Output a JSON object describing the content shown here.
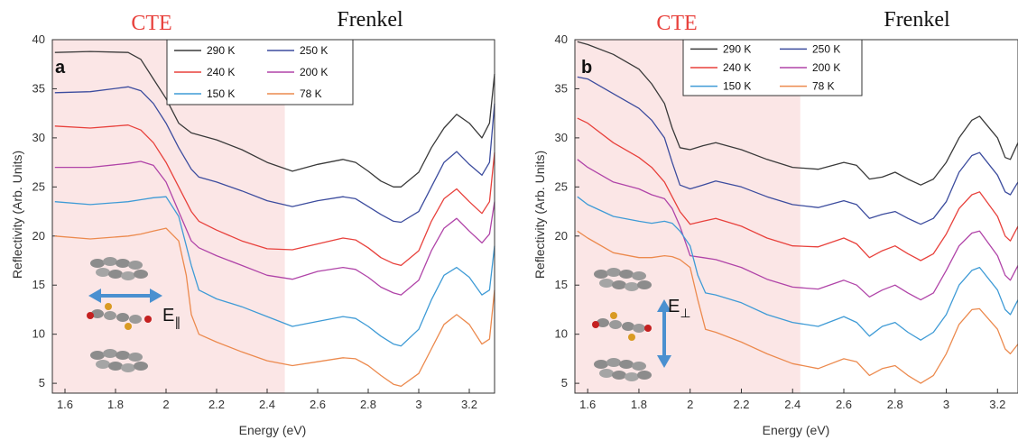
{
  "chart_data": [
    {
      "type": "line",
      "panel_label": "a",
      "regions": [
        {
          "text": "CTE",
          "color": "#e8413c",
          "x_from": 1.55,
          "x_to": 2.47,
          "fill": "#fbe6e6"
        },
        {
          "text": "Frenkel",
          "color": "#111111"
        }
      ],
      "xlabel": "Energy (eV)",
      "ylabel": "Reflectivity (Arb. Units)",
      "xlim": [
        1.55,
        3.3
      ],
      "ylim": [
        4,
        40
      ],
      "xticks": [
        1.6,
        1.8,
        2,
        2.2,
        2.4,
        2.6,
        2.8,
        3,
        3.2
      ],
      "xtick_labels": [
        "1.6",
        "1.8",
        "2",
        "2.2",
        "2.4",
        "2.6",
        "2.8",
        "3",
        "3.2"
      ],
      "yticks": [
        5,
        10,
        15,
        20,
        25,
        30,
        35,
        40
      ],
      "ytick_labels": [
        "5",
        "10",
        "15",
        "20",
        "25",
        "30",
        "35",
        "40"
      ],
      "polarization_label": "E",
      "polarization_sub": "∥",
      "legend_position": "top-center",
      "series": [
        {
          "name": "290 K",
          "color": "#3a3a3a",
          "x": [
            1.56,
            1.7,
            1.85,
            1.9,
            1.95,
            2.0,
            2.05,
            2.1,
            2.2,
            2.3,
            2.4,
            2.5,
            2.6,
            2.7,
            2.75,
            2.8,
            2.85,
            2.9,
            2.93,
            3.0,
            3.05,
            3.1,
            3.15,
            3.2,
            3.25,
            3.28,
            3.3
          ],
          "y": [
            38.7,
            38.8,
            38.7,
            38.0,
            36.0,
            34.0,
            31.5,
            30.5,
            29.8,
            28.8,
            27.5,
            26.6,
            27.3,
            27.8,
            27.5,
            26.6,
            25.6,
            25.0,
            25.0,
            26.5,
            29.0,
            31.0,
            32.4,
            31.5,
            30.0,
            31.5,
            36.5
          ]
        },
        {
          "name": "250 K",
          "color": "#3c4c9e",
          "x": [
            1.56,
            1.7,
            1.85,
            1.9,
            1.95,
            2.0,
            2.05,
            2.1,
            2.13,
            2.2,
            2.3,
            2.4,
            2.5,
            2.6,
            2.7,
            2.75,
            2.8,
            2.85,
            2.9,
            2.93,
            3.0,
            3.05,
            3.1,
            3.15,
            3.2,
            3.25,
            3.28,
            3.3
          ],
          "y": [
            34.6,
            34.7,
            35.2,
            34.8,
            33.5,
            31.5,
            29.0,
            26.8,
            26.0,
            25.5,
            24.6,
            23.6,
            23.0,
            23.6,
            24.0,
            23.8,
            23.0,
            22.2,
            21.5,
            21.4,
            22.5,
            25.0,
            27.5,
            28.6,
            27.3,
            26.2,
            27.5,
            33.5
          ]
        },
        {
          "name": "240 K",
          "color": "#e8413c",
          "x": [
            1.56,
            1.7,
            1.85,
            1.9,
            1.95,
            2.0,
            2.05,
            2.1,
            2.13,
            2.2,
            2.3,
            2.4,
            2.5,
            2.6,
            2.7,
            2.75,
            2.8,
            2.85,
            2.9,
            2.93,
            3.0,
            3.05,
            3.1,
            3.15,
            3.2,
            3.25,
            3.28,
            3.3
          ],
          "y": [
            31.2,
            31.0,
            31.3,
            30.8,
            29.5,
            27.5,
            25.0,
            22.5,
            21.5,
            20.6,
            19.5,
            18.7,
            18.6,
            19.2,
            19.8,
            19.6,
            18.8,
            17.8,
            17.2,
            17.0,
            18.5,
            21.5,
            23.8,
            24.8,
            23.5,
            22.3,
            23.5,
            28.5
          ]
        },
        {
          "name": "200 K",
          "color": "#b044a8",
          "x": [
            1.56,
            1.7,
            1.85,
            1.9,
            1.95,
            2.0,
            2.05,
            2.1,
            2.13,
            2.2,
            2.3,
            2.4,
            2.5,
            2.6,
            2.7,
            2.75,
            2.8,
            2.85,
            2.9,
            2.93,
            3.0,
            3.05,
            3.1,
            3.15,
            3.2,
            3.25,
            3.28,
            3.3
          ],
          "y": [
            27.0,
            27.0,
            27.4,
            27.6,
            27.2,
            25.5,
            22.5,
            19.5,
            18.8,
            18.0,
            17.0,
            16.0,
            15.6,
            16.4,
            16.8,
            16.6,
            15.8,
            14.8,
            14.2,
            14.0,
            15.5,
            18.5,
            20.8,
            21.8,
            20.5,
            19.3,
            20.2,
            23.5
          ]
        },
        {
          "name": "150 K",
          "color": "#3f9bd6",
          "x": [
            1.56,
            1.7,
            1.85,
            1.9,
            1.95,
            2.0,
            2.05,
            2.1,
            2.13,
            2.2,
            2.3,
            2.4,
            2.5,
            2.6,
            2.7,
            2.75,
            2.8,
            2.85,
            2.9,
            2.93,
            3.0,
            3.05,
            3.1,
            3.15,
            3.2,
            3.25,
            3.28,
            3.3
          ],
          "y": [
            23.5,
            23.2,
            23.5,
            23.7,
            23.9,
            24.0,
            22.0,
            17.0,
            14.5,
            13.6,
            12.8,
            11.8,
            10.8,
            11.3,
            11.8,
            11.6,
            10.8,
            9.8,
            9.0,
            8.8,
            10.5,
            13.5,
            16.0,
            16.8,
            15.8,
            14.0,
            14.5,
            19.0
          ]
        },
        {
          "name": "78 K",
          "color": "#ec8a4e",
          "x": [
            1.56,
            1.7,
            1.85,
            1.9,
            1.95,
            2.0,
            2.05,
            2.08,
            2.1,
            2.13,
            2.2,
            2.3,
            2.4,
            2.5,
            2.6,
            2.7,
            2.75,
            2.8,
            2.85,
            2.9,
            2.93,
            3.0,
            3.05,
            3.1,
            3.15,
            3.2,
            3.25,
            3.28,
            3.3
          ],
          "y": [
            20.0,
            19.7,
            20.0,
            20.2,
            20.5,
            20.8,
            19.5,
            16.0,
            12.0,
            10.0,
            9.2,
            8.2,
            7.3,
            6.8,
            7.2,
            7.6,
            7.5,
            6.8,
            5.8,
            4.9,
            4.7,
            6.0,
            8.5,
            11.0,
            12.0,
            11.0,
            9.0,
            9.5,
            14.5
          ]
        }
      ]
    },
    {
      "type": "line",
      "panel_label": "b",
      "regions": [
        {
          "text": "CTE",
          "color": "#e8413c",
          "x_from": 1.55,
          "x_to": 2.43,
          "fill": "#fbe6e6"
        },
        {
          "text": "Frenkel",
          "color": "#111111"
        }
      ],
      "xlabel": "Energy (eV)",
      "ylabel": "Reflectivity (Arb. Units)",
      "xlim": [
        1.55,
        3.28
      ],
      "ylim": [
        4,
        40
      ],
      "xticks": [
        1.6,
        1.8,
        2,
        2.2,
        2.4,
        2.6,
        2.8,
        3,
        3.2
      ],
      "xtick_labels": [
        "1.6",
        "1.8",
        "2",
        "2.2",
        "2.4",
        "2.6",
        "2.8",
        "3",
        "3.2"
      ],
      "yticks": [
        5,
        10,
        15,
        20,
        25,
        30,
        35,
        40
      ],
      "ytick_labels": [
        "5",
        "10",
        "15",
        "20",
        "25",
        "30",
        "35",
        "40"
      ],
      "polarization_label": "E",
      "polarization_sub": "⊥",
      "legend_position": "top-center",
      "series": [
        {
          "name": "290 K",
          "color": "#3a3a3a",
          "x": [
            1.56,
            1.6,
            1.7,
            1.8,
            1.85,
            1.9,
            1.93,
            1.96,
            2.0,
            2.05,
            2.1,
            2.2,
            2.3,
            2.4,
            2.5,
            2.6,
            2.65,
            2.7,
            2.75,
            2.8,
            2.85,
            2.9,
            2.95,
            3.0,
            3.05,
            3.1,
            3.13,
            3.2,
            3.23,
            3.25,
            3.28
          ],
          "y": [
            39.8,
            39.5,
            38.5,
            37.0,
            35.5,
            33.5,
            31.0,
            29.0,
            28.8,
            29.2,
            29.5,
            28.8,
            27.8,
            27.0,
            26.8,
            27.5,
            27.2,
            25.8,
            26.0,
            26.5,
            25.8,
            25.2,
            25.8,
            27.5,
            30.0,
            31.8,
            32.2,
            30.0,
            28.0,
            27.8,
            29.5
          ]
        },
        {
          "name": "250 K",
          "color": "#3c4c9e",
          "x": [
            1.56,
            1.6,
            1.7,
            1.8,
            1.85,
            1.9,
            1.93,
            1.96,
            2.0,
            2.05,
            2.1,
            2.2,
            2.3,
            2.4,
            2.5,
            2.6,
            2.65,
            2.7,
            2.75,
            2.8,
            2.85,
            2.9,
            2.95,
            3.0,
            3.05,
            3.1,
            3.13,
            3.2,
            3.23,
            3.25,
            3.28
          ],
          "y": [
            36.2,
            36.0,
            34.5,
            33.0,
            31.8,
            30.0,
            27.5,
            25.2,
            24.8,
            25.2,
            25.6,
            25.0,
            24.0,
            23.2,
            22.9,
            23.6,
            23.2,
            21.8,
            22.2,
            22.5,
            21.8,
            21.2,
            21.8,
            23.5,
            26.5,
            28.2,
            28.5,
            26.2,
            24.5,
            24.2,
            25.5
          ]
        },
        {
          "name": "240 K",
          "color": "#e8413c",
          "x": [
            1.56,
            1.6,
            1.7,
            1.8,
            1.85,
            1.9,
            1.93,
            1.96,
            2.0,
            2.05,
            2.1,
            2.2,
            2.3,
            2.4,
            2.5,
            2.6,
            2.65,
            2.7,
            2.75,
            2.8,
            2.85,
            2.9,
            2.95,
            3.0,
            3.05,
            3.1,
            3.13,
            3.2,
            3.23,
            3.25,
            3.28
          ],
          "y": [
            32.0,
            31.5,
            29.5,
            28.0,
            27.0,
            25.5,
            24.0,
            22.5,
            21.2,
            21.5,
            21.8,
            21.0,
            19.8,
            19.0,
            18.9,
            19.8,
            19.2,
            17.8,
            18.5,
            19.0,
            18.2,
            17.5,
            18.2,
            20.2,
            22.8,
            24.2,
            24.5,
            22.0,
            20.0,
            19.5,
            21.0
          ]
        },
        {
          "name": "200 K",
          "color": "#b044a8",
          "x": [
            1.56,
            1.6,
            1.7,
            1.8,
            1.85,
            1.9,
            1.93,
            1.96,
            2.0,
            2.05,
            2.1,
            2.2,
            2.3,
            2.4,
            2.5,
            2.6,
            2.65,
            2.7,
            2.75,
            2.8,
            2.85,
            2.9,
            2.95,
            3.0,
            3.05,
            3.1,
            3.13,
            3.2,
            3.23,
            3.25,
            3.28
          ],
          "y": [
            27.8,
            27.0,
            25.5,
            24.8,
            24.2,
            23.8,
            22.8,
            21.0,
            18.0,
            17.8,
            17.6,
            16.8,
            15.6,
            14.8,
            14.6,
            15.5,
            15.0,
            13.8,
            14.5,
            15.0,
            14.2,
            13.5,
            14.2,
            16.5,
            19.0,
            20.3,
            20.5,
            18.0,
            16.0,
            15.5,
            17.0
          ]
        },
        {
          "name": "150 K",
          "color": "#3f9bd6",
          "x": [
            1.56,
            1.6,
            1.7,
            1.8,
            1.85,
            1.9,
            1.93,
            1.96,
            2.0,
            2.03,
            2.06,
            2.1,
            2.2,
            2.3,
            2.4,
            2.5,
            2.6,
            2.65,
            2.7,
            2.75,
            2.8,
            2.85,
            2.9,
            2.95,
            3.0,
            3.05,
            3.1,
            3.13,
            3.2,
            3.23,
            3.25,
            3.28
          ],
          "y": [
            24.0,
            23.2,
            22.0,
            21.5,
            21.3,
            21.5,
            21.3,
            20.5,
            19.0,
            16.0,
            14.2,
            14.0,
            13.2,
            12.0,
            11.2,
            10.8,
            11.8,
            11.2,
            9.8,
            10.8,
            11.2,
            10.2,
            9.4,
            10.2,
            12.0,
            15.0,
            16.5,
            16.8,
            14.5,
            12.5,
            12.0,
            13.5
          ]
        },
        {
          "name": "78 K",
          "color": "#ec8a4e",
          "x": [
            1.56,
            1.6,
            1.7,
            1.8,
            1.85,
            1.9,
            1.93,
            1.96,
            2.0,
            2.03,
            2.06,
            2.1,
            2.2,
            2.3,
            2.4,
            2.5,
            2.6,
            2.65,
            2.7,
            2.75,
            2.8,
            2.85,
            2.9,
            2.95,
            3.0,
            3.05,
            3.1,
            3.13,
            3.2,
            3.23,
            3.25,
            3.28
          ],
          "y": [
            20.5,
            19.8,
            18.3,
            17.8,
            17.8,
            18.0,
            17.9,
            17.6,
            16.8,
            13.5,
            10.5,
            10.2,
            9.2,
            8.0,
            7.0,
            6.5,
            7.5,
            7.2,
            5.8,
            6.5,
            6.8,
            5.8,
            5.0,
            5.8,
            8.0,
            11.0,
            12.5,
            12.6,
            10.5,
            8.5,
            8.0,
            9.0
          ]
        }
      ]
    }
  ]
}
